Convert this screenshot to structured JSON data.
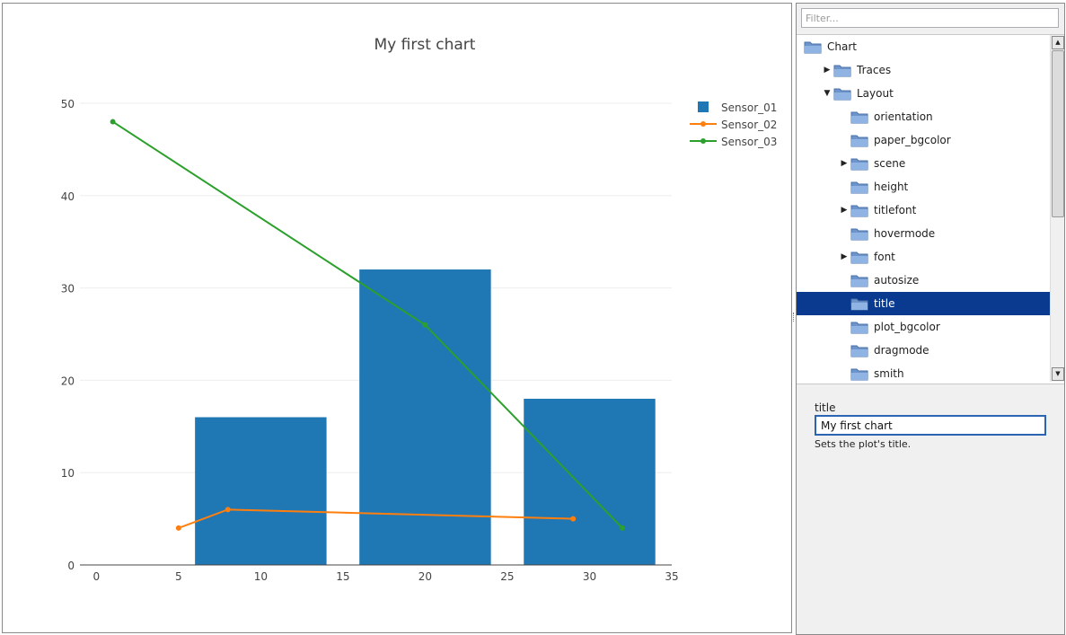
{
  "chart_data": {
    "type": "bar",
    "title": "My first chart",
    "xlim": [
      -1,
      35
    ],
    "ylim": [
      0,
      50
    ],
    "xticks": [
      0,
      5,
      10,
      15,
      20,
      25,
      30,
      35
    ],
    "yticks": [
      0,
      10,
      20,
      30,
      40,
      50
    ],
    "grid": true,
    "legend_position": "top-right",
    "series": [
      {
        "name": "Sensor_01",
        "type": "bar",
        "color": "#1f77b4",
        "x": [
          10,
          20,
          30
        ],
        "y": [
          16,
          32,
          18
        ],
        "bar_width": 8
      },
      {
        "name": "Sensor_02",
        "type": "line",
        "color": "#ff7f0e",
        "x": [
          5,
          8,
          29
        ],
        "y": [
          4,
          6,
          5
        ]
      },
      {
        "name": "Sensor_03",
        "type": "line",
        "color": "#2ca02c",
        "x": [
          1,
          20,
          32
        ],
        "y": [
          48,
          26,
          4
        ]
      }
    ]
  },
  "sidebar": {
    "filter_placeholder": "Filter...",
    "tree": [
      {
        "label": "Chart",
        "level": 0,
        "arrow": "",
        "selected": false
      },
      {
        "label": "Traces",
        "level": 1,
        "arrow": "collapsed",
        "selected": false
      },
      {
        "label": "Layout",
        "level": 1,
        "arrow": "expanded",
        "selected": false
      },
      {
        "label": "orientation",
        "level": 2,
        "arrow": "",
        "selected": false
      },
      {
        "label": "paper_bgcolor",
        "level": 2,
        "arrow": "",
        "selected": false
      },
      {
        "label": "scene",
        "level": 2,
        "arrow": "collapsed",
        "selected": false
      },
      {
        "label": "height",
        "level": 2,
        "arrow": "",
        "selected": false
      },
      {
        "label": "titlefont",
        "level": 2,
        "arrow": "collapsed",
        "selected": false
      },
      {
        "label": "hovermode",
        "level": 2,
        "arrow": "",
        "selected": false
      },
      {
        "label": "font",
        "level": 2,
        "arrow": "collapsed",
        "selected": false
      },
      {
        "label": "autosize",
        "level": 2,
        "arrow": "",
        "selected": false
      },
      {
        "label": "title",
        "level": 2,
        "arrow": "",
        "selected": true
      },
      {
        "label": "plot_bgcolor",
        "level": 2,
        "arrow": "",
        "selected": false
      },
      {
        "label": "dragmode",
        "level": 2,
        "arrow": "",
        "selected": false
      },
      {
        "label": "smith",
        "level": 2,
        "arrow": "",
        "selected": false
      }
    ],
    "icons": {
      "folder": "folder-icon",
      "expanded": "triangle-down-icon",
      "collapsed": "triangle-right-icon"
    }
  },
  "property": {
    "name": "title",
    "value": "My first chart",
    "description": "Sets the plot's title."
  },
  "colors": {
    "selection": "#0a3a8f",
    "input_border": "#2a64b3"
  }
}
